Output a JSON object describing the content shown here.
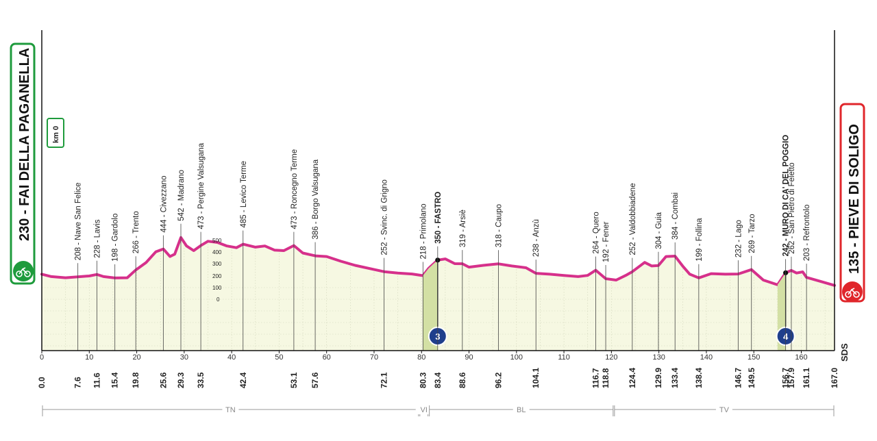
{
  "chart_data": {
    "type": "area",
    "start": {
      "label": "230 - FAI DELLA PAGANELLA",
      "color": "#1e9b3c"
    },
    "finish": {
      "label": "135 - PIEVE DI SOLIGO",
      "color": "#e0262b"
    },
    "km_zero": "km 0",
    "altitude_ticks": [
      "500",
      "400",
      "300",
      "200",
      "100",
      "0"
    ],
    "sds": "SDS",
    "line_color": "#d6308b",
    "fill_color": "#f6f8e2",
    "xlim": [
      0,
      167
    ],
    "x_ticks": [
      "0",
      "10",
      "20",
      "30",
      "40",
      "50",
      "60",
      "70",
      "80",
      "90",
      "100",
      "110",
      "120",
      "130",
      "140",
      "150",
      "160"
    ],
    "profile": [
      [
        0,
        230
      ],
      [
        2,
        210
      ],
      [
        5,
        200
      ],
      [
        7.6,
        208
      ],
      [
        10,
        215
      ],
      [
        11.6,
        228
      ],
      [
        13,
        210
      ],
      [
        15.4,
        198
      ],
      [
        18,
        200
      ],
      [
        19.8,
        266
      ],
      [
        22,
        330
      ],
      [
        24,
        420
      ],
      [
        25.6,
        444
      ],
      [
        27,
        380
      ],
      [
        28,
        400
      ],
      [
        29.3,
        542
      ],
      [
        30.5,
        470
      ],
      [
        32,
        430
      ],
      [
        33.5,
        473
      ],
      [
        35,
        510
      ],
      [
        37,
        500
      ],
      [
        39,
        470
      ],
      [
        41,
        455
      ],
      [
        42.4,
        485
      ],
      [
        45,
        460
      ],
      [
        47,
        470
      ],
      [
        49,
        435
      ],
      [
        51,
        430
      ],
      [
        53.1,
        473
      ],
      [
        55,
        410
      ],
      [
        57.6,
        386
      ],
      [
        60,
        380
      ],
      [
        63,
        340
      ],
      [
        66,
        305
      ],
      [
        70,
        270
      ],
      [
        72.1,
        252
      ],
      [
        75,
        240
      ],
      [
        78,
        232
      ],
      [
        80.3,
        218
      ],
      [
        81.5,
        280
      ],
      [
        83.4,
        350
      ],
      [
        85,
        360
      ],
      [
        87,
        320
      ],
      [
        88.6,
        319
      ],
      [
        90,
        290
      ],
      [
        93,
        305
      ],
      [
        96.2,
        318
      ],
      [
        99,
        300
      ],
      [
        102,
        285
      ],
      [
        104.1,
        238
      ],
      [
        107,
        230
      ],
      [
        110,
        220
      ],
      [
        113,
        210
      ],
      [
        115,
        220
      ],
      [
        116.7,
        264
      ],
      [
        118.8,
        192
      ],
      [
        121,
        180
      ],
      [
        123,
        220
      ],
      [
        124.4,
        252
      ],
      [
        127,
        330
      ],
      [
        128.5,
        300
      ],
      [
        129.9,
        304
      ],
      [
        131.5,
        380
      ],
      [
        133.4,
        384
      ],
      [
        135,
        300
      ],
      [
        136.5,
        230
      ],
      [
        138.4,
        199
      ],
      [
        141,
        235
      ],
      [
        144,
        230
      ],
      [
        146.7,
        232
      ],
      [
        149.5,
        269
      ],
      [
        152,
        180
      ],
      [
        155,
        140
      ],
      [
        156.7,
        242
      ],
      [
        157.9,
        262
      ],
      [
        159,
        240
      ],
      [
        160.3,
        250
      ],
      [
        161.1,
        203
      ],
      [
        164,
        170
      ],
      [
        167,
        135
      ]
    ],
    "waypoints": [
      {
        "km": 7.6,
        "label": "208 - Nave San Felice"
      },
      {
        "km": 11.6,
        "label": "228 - Lavis"
      },
      {
        "km": 15.4,
        "label": "198 - Gardolo"
      },
      {
        "km": 19.8,
        "label": "266 - Trento"
      },
      {
        "km": 25.6,
        "label": "444 - Civezzano"
      },
      {
        "km": 29.3,
        "label": "542 - Madrano"
      },
      {
        "km": 33.5,
        "label": "473 - Pergine Valsugana"
      },
      {
        "km": 42.4,
        "label": "485 - Levico Terme"
      },
      {
        "km": 53.1,
        "label": "473 - Roncegno Terme"
      },
      {
        "km": 57.6,
        "label": "386 - Borgo Valsugana"
      },
      {
        "km": 72.1,
        "label": "252 - Svinc. di Grigno"
      },
      {
        "km": 80.3,
        "label": "218 - Primolano"
      },
      {
        "km": 83.4,
        "label": "350 - FASTRO",
        "bold": true,
        "km_bold": true
      },
      {
        "km": 88.6,
        "label": "319 - Arsiè"
      },
      {
        "km": 96.2,
        "label": "318 - Caupo"
      },
      {
        "km": 104.1,
        "label": "238 - Anzù"
      },
      {
        "km": 116.7,
        "label": "264 - Quero"
      },
      {
        "km": 118.8,
        "label": "192 - Fener"
      },
      {
        "km": 124.4,
        "label": "252 - Valdobbiadene"
      },
      {
        "km": 129.9,
        "label": "304 - Guia"
      },
      {
        "km": 133.4,
        "label": "384 - Combai"
      },
      {
        "km": 138.4,
        "label": "199 - Follina"
      },
      {
        "km": 146.7,
        "label": "232 - Lago"
      },
      {
        "km": 149.5,
        "label": "269 - Tarzo"
      },
      {
        "km": 156.7,
        "label": "242 - MURO DI CA' DEL POGGIO",
        "bold": true,
        "km_bold": true
      },
      {
        "km": 157.9,
        "label": "262 - San Pietro di Feletto"
      },
      {
        "km": 161.1,
        "label": "203 - Refrontolo"
      }
    ],
    "km_marks": [
      "0.0",
      "7.6",
      "11.6",
      "15.4",
      "19.8",
      "25.6",
      "29.3",
      "33.5",
      "42.4",
      "53.1",
      "57.6",
      "72.1",
      "80.3",
      "83.4",
      "88.6",
      "96.2",
      "104.1",
      "116.7",
      "118.8",
      "124.4",
      "129.9",
      "133.4",
      "138.4",
      "146.7",
      "149.5",
      "156.7",
      "157.9",
      "161.1",
      "167.0"
    ],
    "climbs": [
      {
        "km_start": 80.3,
        "km_end": 83.4,
        "category": "3"
      },
      {
        "km_start": 155.0,
        "km_end": 156.7,
        "category": "4"
      }
    ],
    "regions": [
      {
        "label": "TN",
        "km_start": 0,
        "km_end": 79.5
      },
      {
        "label": "VI",
        "km_start": 79.5,
        "km_end": 81.5
      },
      {
        "label": "BL",
        "km_start": 81.5,
        "km_end": 120.5
      },
      {
        "label": "TV",
        "km_start": 120.5,
        "km_end": 167
      }
    ]
  }
}
